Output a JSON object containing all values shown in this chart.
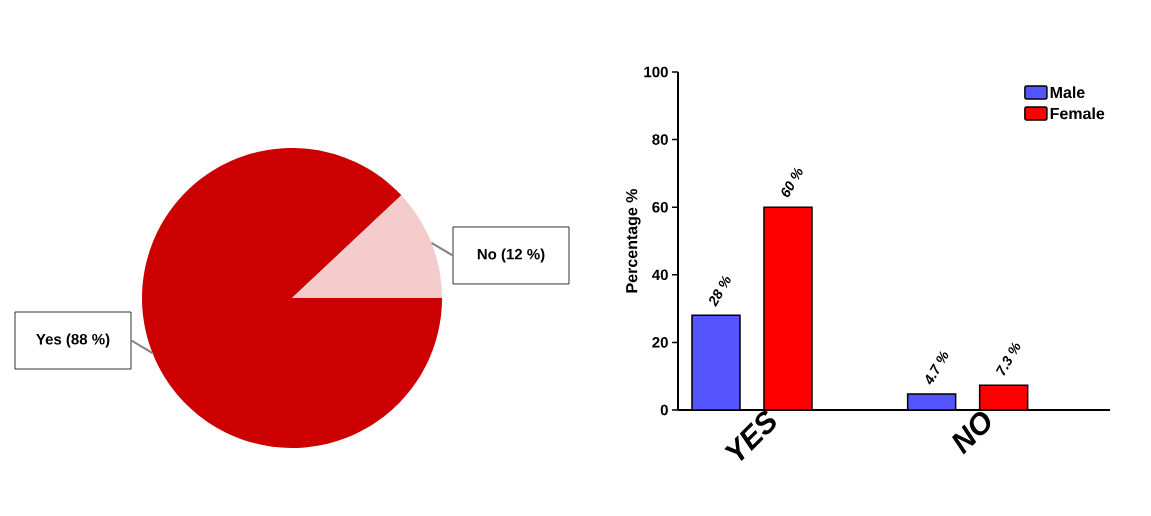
{
  "chart_data": [
    {
      "type": "pie",
      "categories": [
        "Yes (88 %)",
        "No (12 %)"
      ],
      "values": [
        88,
        12
      ],
      "colors": [
        "#cc0000",
        "#f4cccc"
      ]
    },
    {
      "type": "bar",
      "categories": [
        "YES",
        "NO"
      ],
      "ylabel": "Percentage %",
      "ylim": [
        0,
        100
      ],
      "yticks": [
        0,
        20,
        40,
        60,
        80,
        100
      ],
      "legend": "top right",
      "series": [
        {
          "name": "Male",
          "color": "#5555ff",
          "values": [
            28,
            4.7
          ],
          "value_labels": [
            "28 %",
            "4.7 %"
          ]
        },
        {
          "name": "Female",
          "color": "#ff0000",
          "values": [
            60,
            7.3
          ],
          "value_labels": [
            "60 %",
            "7.3 %"
          ]
        }
      ]
    }
  ]
}
